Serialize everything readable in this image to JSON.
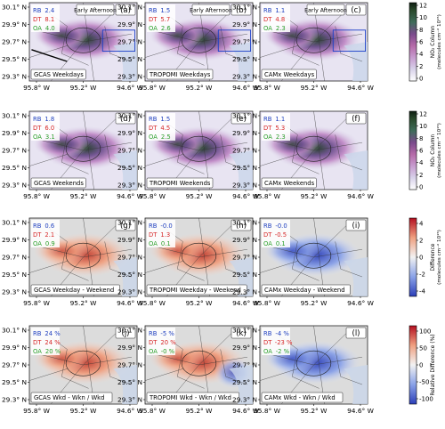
{
  "rows": [
    {
      "panels": [
        {
          "letter": "(a)",
          "top_right": "Early Afternoon",
          "bottom": "GCAS Weekdays",
          "stats": {
            "RB": "2.4",
            "DT": "8.1",
            "OA": "4.0"
          }
        },
        {
          "letter": "(b)",
          "top_right": "Early Afternoon",
          "bottom": "TROPOMI Weekdays",
          "stats": {
            "RB": "1.5",
            "DT": "5.7",
            "OA": "2.6"
          }
        },
        {
          "letter": "(c)",
          "top_right": "Early Afternoon",
          "bottom": "CAMx Weekdays",
          "stats": {
            "RB": "1.1",
            "DT": "4.8",
            "OA": "2.3"
          }
        }
      ],
      "colorbar": {
        "ticks": [
          "12",
          "10",
          "8",
          "6",
          "4",
          "2",
          "0"
        ],
        "label1": "NO₂ Column",
        "label2": "(molecules cm⁻² 10¹⁵)"
      }
    },
    {
      "panels": [
        {
          "letter": "(d)",
          "top_right": "",
          "bottom": "GCAS Weekends",
          "stats": {
            "RB": "1.8",
            "DT": "6.0",
            "OA": "3.1"
          }
        },
        {
          "letter": "(e)",
          "top_right": "",
          "bottom": "TROPOMI Weekends",
          "stats": {
            "RB": "1.5",
            "DT": "4.5",
            "OA": "2.5"
          }
        },
        {
          "letter": "(f)",
          "top_right": "",
          "bottom": "CAMx Weekends",
          "stats": {
            "RB": "1.1",
            "DT": "5.3",
            "OA": "2.3"
          }
        }
      ],
      "colorbar": {
        "ticks": [
          "12",
          "10",
          "8",
          "6",
          "4",
          "2",
          "0"
        ],
        "label1": "NO₂ Column",
        "label2": "(molecules cm⁻² 10¹⁵)"
      }
    },
    {
      "panels": [
        {
          "letter": "(g)",
          "top_right": "",
          "bottom": "GCAS Weekday - Weekend",
          "stats": {
            "RB": "0.6",
            "DT": "2.1",
            "OA": "0.9"
          }
        },
        {
          "letter": "(h)",
          "top_right": "",
          "bottom": "TROPOMI Weekday - Weekend",
          "stats": {
            "RB": "-0.0",
            "DT": "1.3",
            "OA": "0.1"
          }
        },
        {
          "letter": "(i)",
          "top_right": "",
          "bottom": "CAMx Weekday - Weekend",
          "stats": {
            "RB": "-0.0",
            "DT": "-0.5",
            "OA": "0.1"
          }
        }
      ],
      "colorbar": {
        "ticks": [
          "4",
          "2",
          "0",
          "-2",
          "-4"
        ],
        "label1": "Difference",
        "label2": "(molecules cm⁻² 10¹⁵)"
      }
    },
    {
      "panels": [
        {
          "letter": "(j)",
          "top_right": "",
          "bottom": "GCAS Wkd - Wkn / Wkd",
          "stats": {
            "RB": "24 %",
            "DT": "24 %",
            "OA": "20 %"
          }
        },
        {
          "letter": "(k)",
          "top_right": "",
          "bottom": "TROPOMI Wkd - Wkn / Wkd",
          "stats": {
            "RB": "-5 %",
            "DT": "20 %",
            "OA": "-0 %"
          }
        },
        {
          "letter": "(l)",
          "top_right": "",
          "bottom": "CAMx Wkd - Wkn / Wkd",
          "stats": {
            "RB": "-4 %",
            "DT": "-23 %",
            "OA": "-2 %"
          }
        }
      ],
      "colorbar": {
        "ticks": [
          "100",
          "50",
          "0",
          "-50",
          "-100"
        ],
        "label1": "Relative Difference (%)",
        "label2": ""
      }
    }
  ],
  "lat_ticks": [
    "30.1° N",
    "29.9° N",
    "29.7° N",
    "29.5° N",
    "29.3° N"
  ],
  "lon_ticks": [
    "95.8° W",
    "95.2° W",
    "94.6° W"
  ],
  "stat_labels": {
    "RB": "RB",
    "DT": "DT",
    "OA": "OA"
  },
  "stat_colors": {
    "RB": "#1f3fbf",
    "DT": "#d62728",
    "OA": "#2ca02c"
  }
}
